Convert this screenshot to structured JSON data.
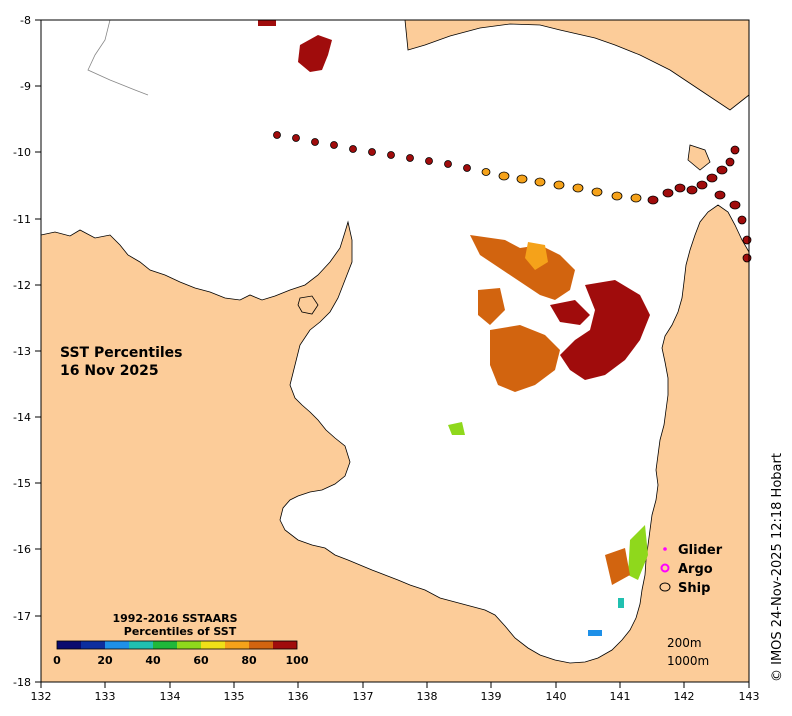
{
  "map": {
    "title_line1": "SST Percentiles",
    "title_line2": "16 Nov 2025",
    "credit": "© IMOS 24-Nov-2025 12:18 Hobart",
    "land_color": "#FCCC99",
    "sea_color": "#FFFFFF",
    "lon_ticks": [
      "132",
      "133",
      "134",
      "135",
      "136",
      "137",
      "138",
      "139",
      "140",
      "141",
      "142",
      "143"
    ],
    "lat_ticks": [
      "-8",
      "-9",
      "-10",
      "-11",
      "-12",
      "-13",
      "-14",
      "-15",
      "-16",
      "-17",
      "-18"
    ]
  },
  "colorbar": {
    "title_line1": "1992-2016 SSTAARS",
    "title_line2": "Percentiles of SST",
    "labels": [
      "0",
      "20",
      "40",
      "60",
      "80",
      "100"
    ],
    "colors": [
      "#0A0A6E",
      "#0D2E9E",
      "#1E90E8",
      "#20C0B0",
      "#1FB83A",
      "#8FD81C",
      "#F0E018",
      "#F5A21A",
      "#D2640F",
      "#A00C0C"
    ]
  },
  "legend": {
    "items": [
      {
        "label": "Glider",
        "symbol": "magenta-dot"
      },
      {
        "label": "Argo",
        "symbol": "magenta-ring"
      },
      {
        "label": "Ship",
        "symbol": "black-ellipse"
      }
    ]
  },
  "scale": {
    "label_1": "200m",
    "label_2": "1000m"
  }
}
